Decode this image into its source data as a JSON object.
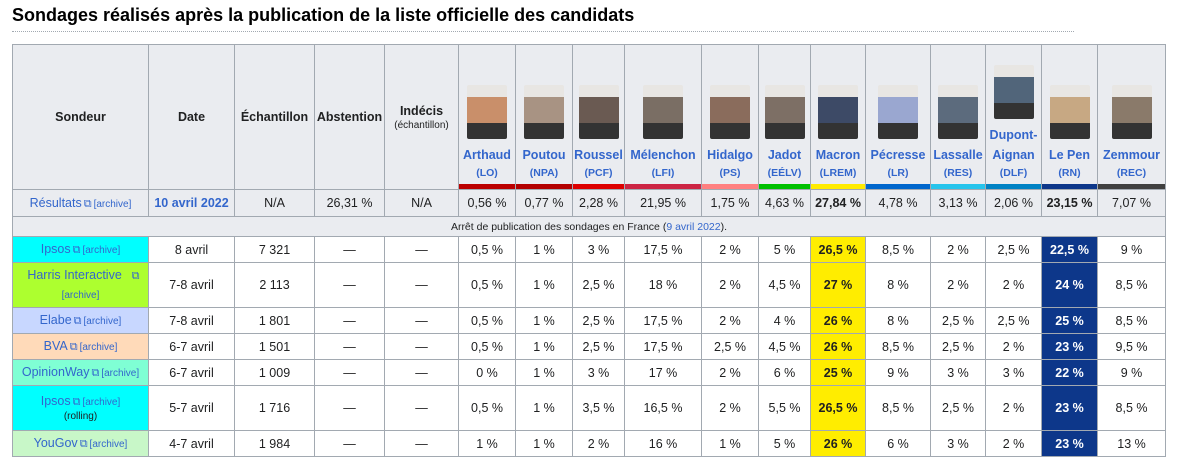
{
  "heading": "Sondages réalisés après la publication de la liste officielle des candidats",
  "headers": {
    "sondeur": "Sondeur",
    "date": "Date",
    "echantillon": "Échantillon",
    "abstention": "Abstention",
    "indecis": "Indécis",
    "indecis_sub": "(échantillon)"
  },
  "candidates": [
    {
      "name": "Arthaud",
      "party": "(LO)",
      "color": "#bb0000",
      "photo": "#c98f6a"
    },
    {
      "name": "Poutou",
      "party": "(NPA)",
      "color": "#b30000",
      "photo": "#a89383"
    },
    {
      "name": "Roussel",
      "party": "(PCF)",
      "color": "#dd0000",
      "photo": "#6a5a52"
    },
    {
      "name": "Mélenchon",
      "party": "(LFI)",
      "color": "#cc2443",
      "photo": "#7a6e64"
    },
    {
      "name": "Hidalgo",
      "party": "(PS)",
      "color": "#ff8080",
      "photo": "#8a6c5c"
    },
    {
      "name": "Jadot",
      "party": "(EÉLV)",
      "color": "#00c000",
      "photo": "#7d6f65"
    },
    {
      "name": "Macron",
      "party": "(LREM)",
      "color": "#ffeb00",
      "photo": "#3d4a66"
    },
    {
      "name": "Pécresse",
      "party": "(LR)",
      "color": "#0066cc",
      "photo": "#9aa7d0"
    },
    {
      "name": "Lassalle",
      "party": "(RES)",
      "color": "#26c4ec",
      "photo": "#5c6b7d"
    },
    {
      "name": "Dupont-Aignan",
      "party": "(DLF)",
      "color": "#0082c4",
      "photo": "#51657a"
    },
    {
      "name": "Le Pen",
      "party": "(RN)",
      "color": "#0d378a",
      "photo": "#c7a883"
    },
    {
      "name": "Zemmour",
      "party": "(REC)",
      "color": "#404040",
      "photo": "#8a7a6a"
    }
  ],
  "results": {
    "label": "Résultats",
    "archive": "[archive]",
    "date": "10 avril 2022",
    "echantillon": "N/A",
    "abstention": "26,31 %",
    "indecis": "N/A",
    "values": [
      "0,56 %",
      "0,77 %",
      "2,28 %",
      "21,95 %",
      "1,75 %",
      "4,63 %",
      "27,84 %",
      "4,78 %",
      "3,13 %",
      "2,06 %",
      "23,15 %",
      "7,07 %"
    ]
  },
  "note": {
    "text": "Arrêt de publication des sondages en France (",
    "link": "9 avril 2022",
    "end": ")."
  },
  "polls": [
    {
      "sondeur": "Ipsos",
      "archive": "[archive]",
      "sub": "",
      "color": "#00ffff",
      "date": "8 avril",
      "echantillon": "7 321",
      "abstention": "—",
      "indecis": "—",
      "values": [
        "0,5 %",
        "1 %",
        "3 %",
        "17,5 %",
        "2 %",
        "5 %",
        "26,5 %",
        "8,5 %",
        "2 %",
        "2,5 %",
        "22,5 %",
        "9 %"
      ]
    },
    {
      "sondeur": "Harris Interactive",
      "archive": "[archive]",
      "sub": "",
      "color": "#adff2f",
      "date": "7-8 avril",
      "echantillon": "2 113",
      "abstention": "—",
      "indecis": "—",
      "values": [
        "0,5 %",
        "1 %",
        "2,5 %",
        "18 %",
        "2 %",
        "4,5 %",
        "27 %",
        "8 %",
        "2 %",
        "2 %",
        "24 %",
        "8,5 %"
      ]
    },
    {
      "sondeur": "Elabe",
      "archive": "[archive]",
      "sub": "",
      "color": "#c8d7ff",
      "date": "7-8 avril",
      "echantillon": "1 801",
      "abstention": "—",
      "indecis": "—",
      "values": [
        "0,5 %",
        "1 %",
        "2,5 %",
        "17,5 %",
        "2 %",
        "4 %",
        "26 %",
        "8 %",
        "2,5 %",
        "2,5 %",
        "25 %",
        "8,5 %"
      ]
    },
    {
      "sondeur": "BVA",
      "archive": "[archive]",
      "sub": "",
      "color": "#ffdab9",
      "date": "6-7 avril",
      "echantillon": "1 501",
      "abstention": "—",
      "indecis": "—",
      "values": [
        "0,5 %",
        "1 %",
        "2,5 %",
        "17,5 %",
        "2,5 %",
        "4,5 %",
        "26 %",
        "8,5 %",
        "2,5 %",
        "2 %",
        "23 %",
        "9,5 %"
      ]
    },
    {
      "sondeur": "OpinionWay",
      "archive": "[archive]",
      "sub": "",
      "color": "#7fffd4",
      "date": "6-7 avril",
      "echantillon": "1 009",
      "abstention": "—",
      "indecis": "—",
      "values": [
        "0 %",
        "1 %",
        "3 %",
        "17 %",
        "2 %",
        "6 %",
        "25 %",
        "9 %",
        "3 %",
        "3 %",
        "22 %",
        "9 %"
      ]
    },
    {
      "sondeur": "Ipsos",
      "archive": "[archive]",
      "sub": "(rolling)",
      "color": "#00ffff",
      "date": "5-7 avril",
      "echantillon": "1 716",
      "abstention": "—",
      "indecis": "—",
      "values": [
        "0,5 %",
        "1 %",
        "3,5 %",
        "16,5 %",
        "2 %",
        "5,5 %",
        "26,5 %",
        "8,5 %",
        "2,5 %",
        "2 %",
        "23 %",
        "8,5 %"
      ]
    },
    {
      "sondeur": "YouGov",
      "archive": "[archive]",
      "sub": "",
      "color": "#c8f7c8",
      "date": "4-7 avril",
      "echantillon": "1 984",
      "abstention": "—",
      "indecis": "—",
      "values": [
        "1 %",
        "1 %",
        "2 %",
        "16 %",
        "1 %",
        "5 %",
        "26 %",
        "6 %",
        "3 %",
        "2 %",
        "23 %",
        "13 %"
      ]
    }
  ],
  "highlight": {
    "macron_index": 6,
    "lepen_index": 10,
    "macron_bg": "#ffed00",
    "lepen_bg": "#0d378a"
  }
}
